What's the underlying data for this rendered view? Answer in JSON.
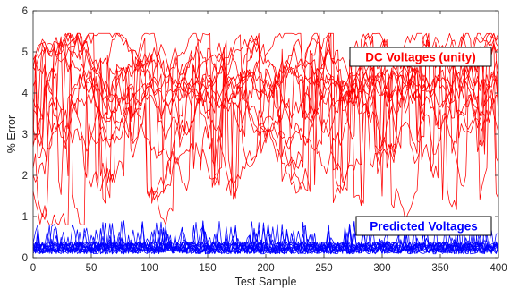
{
  "chart_data": {
    "type": "line",
    "xlabel": "Test Sample",
    "ylabel": "% Error",
    "xlim": [
      0,
      400
    ],
    "ylim": [
      0,
      6
    ],
    "xticks": [
      0,
      50,
      100,
      150,
      200,
      250,
      300,
      350,
      400
    ],
    "yticks": [
      0,
      1,
      2,
      3,
      4,
      5,
      6
    ],
    "grid": false,
    "series": [
      {
        "name": "DC Voltages (unity)",
        "color": "#ff0000",
        "count": 14,
        "typical_range": [
          0.8,
          5.45
        ],
        "upper_band": [
          3.6,
          5.3
        ],
        "mean_level": 3.5
      },
      {
        "name": "Predicted Voltages",
        "color": "#0000ff",
        "count": 14,
        "typical_range": [
          0.0,
          0.9
        ],
        "mean_level": 0.15
      }
    ],
    "annotations": [
      {
        "text": "DC Voltages (unity)",
        "color": "#ff0000",
        "x": 330,
        "y": 4.83
      },
      {
        "text": "Predicted Voltages",
        "color": "#0000ff",
        "x": 330,
        "y": 0.72
      }
    ]
  }
}
